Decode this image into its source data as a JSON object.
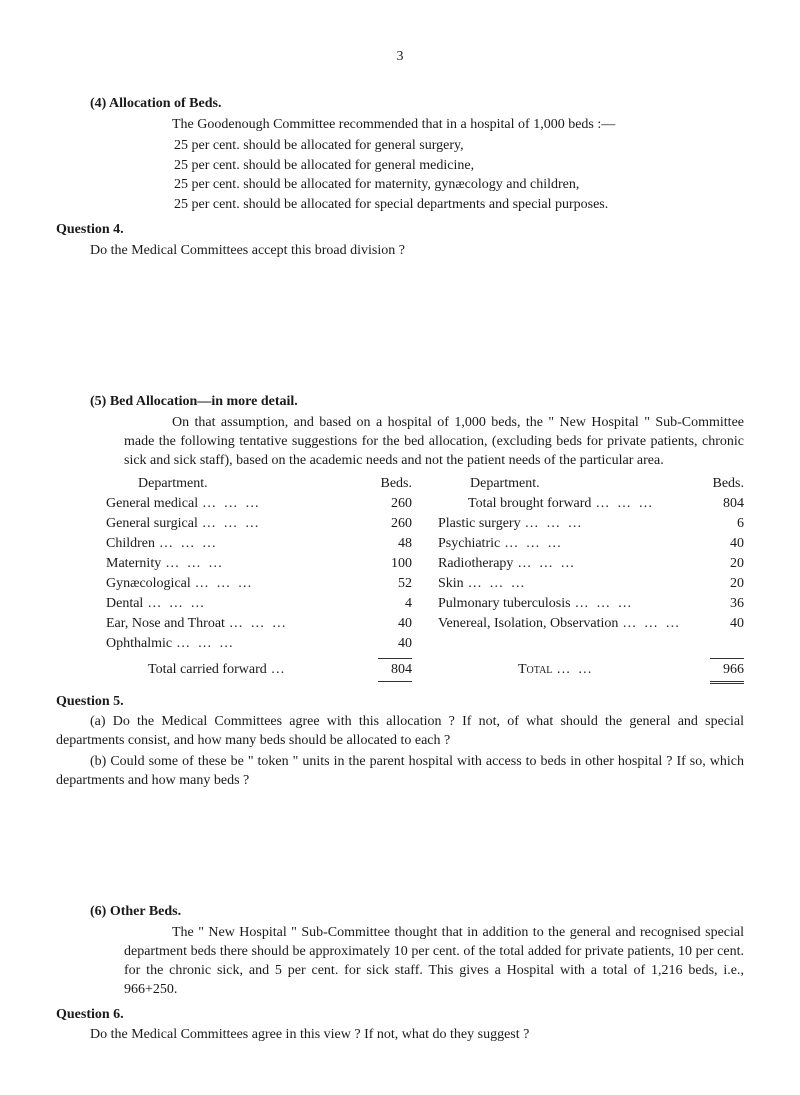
{
  "page_number": "3",
  "section4": {
    "number_title": "(4) Allocation of Beds.",
    "intro": "The Goodenough Committee recommended that in a hospital of 1,000 beds :—",
    "bullets": [
      "25 per cent. should be allocated for general surgery,",
      "25 per cent. should be allocated for general medicine,",
      "25 per cent. should be allocated for maternity, gynæcology and children,",
      "25 per cent. should be allocated for special departments and special purposes."
    ]
  },
  "question4": {
    "heading": "Question 4.",
    "para": "Do the Medical Committees accept this broad division ?"
  },
  "section5": {
    "number_title": "(5) Bed Allocation—in more detail.",
    "intro": "On that assumption, and based on a hospital of 1,000 beds, the \" New Hospital \" Sub-Committee made the following tentative suggestions for the bed allocation, (excluding beds for private patients, chronic sick and sick staff), based on the academic needs and not the patient needs of the particular area.",
    "left_heading_dept": "Department.",
    "left_heading_beds": "Beds.",
    "right_heading_dept": "Department.",
    "right_heading_beds": "Beds.",
    "left_rows": [
      {
        "label": "General medical",
        "value": "260"
      },
      {
        "label": "General surgical",
        "value": "260"
      },
      {
        "label": "Children",
        "value": "48"
      },
      {
        "label": "Maternity",
        "value": "100"
      },
      {
        "label": "Gynæcological",
        "value": "52"
      },
      {
        "label": "Dental",
        "value": "4"
      },
      {
        "label": "Ear, Nose and Throat",
        "value": "40"
      },
      {
        "label": "Ophthalmic",
        "value": "40"
      }
    ],
    "left_total": {
      "label": "Total carried forward",
      "value": "804"
    },
    "right_rows": [
      {
        "label": "Total brought forward",
        "value": "804",
        "indented": true
      },
      {
        "label": "Plastic surgery",
        "value": "6"
      },
      {
        "label": "Psychiatric",
        "value": "40"
      },
      {
        "label": "Radiotherapy",
        "value": "20"
      },
      {
        "label": "Skin",
        "value": "20"
      },
      {
        "label": "Pulmonary tuberculosis",
        "value": "36"
      },
      {
        "label": "Venereal, Isolation, Observation",
        "value": "40"
      }
    ],
    "right_total": {
      "label": "Total",
      "value": "966"
    }
  },
  "question5": {
    "heading": "Question 5.",
    "para_a": "(a) Do the Medical Committees agree with this allocation ?   If not, of what should the general and special departments consist, and how many beds should be allocated to each ?",
    "para_b": "(b) Could some of these be \" token \" units in the parent hospital with access to beds in other hospital ?   If so, which departments and how many beds ?"
  },
  "section6": {
    "number_title": "(6) Other Beds.",
    "para": "The \" New Hospital \" Sub-Committee thought that in addition to the general and recognised special department beds there should be approximately 10 per cent. of the total added for private patients, 10 per cent. for the chronic sick, and 5 per cent. for sick staff. This gives a Hospital with a total of 1,216 beds, i.e., 966+250."
  },
  "question6": {
    "heading": "Question 6.",
    "para": "Do the Medical Committees agree in this view ?   If not, what do they suggest ?"
  }
}
